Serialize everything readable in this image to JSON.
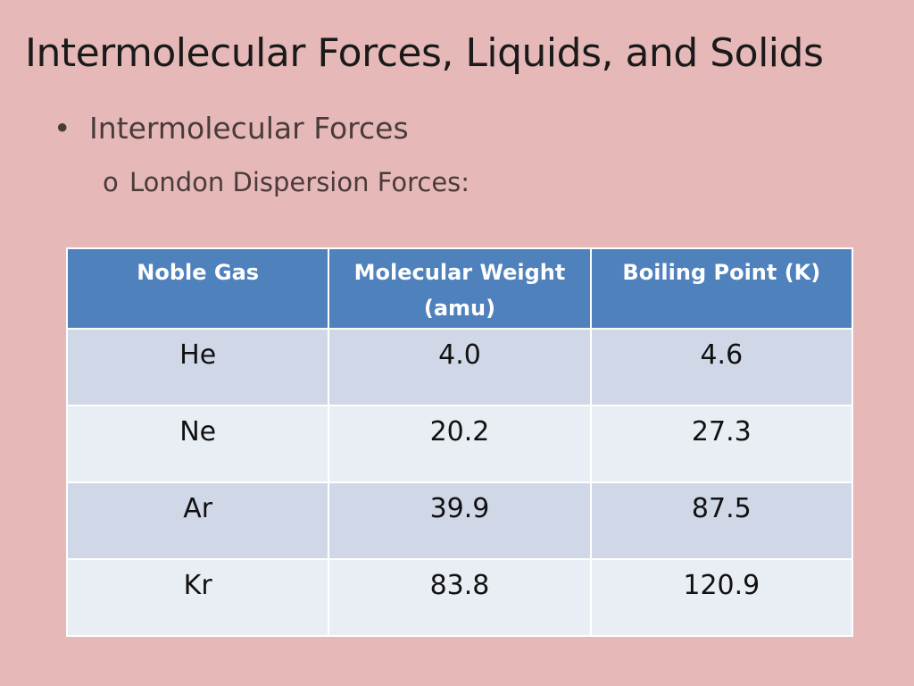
{
  "slide": {
    "title": "Intermolecular Forces, Liquids, and Solids",
    "bullet_1": "Intermolecular Forces",
    "bullet_1_marker": "•",
    "bullet_2": "London Dispersion Forces:",
    "bullet_2_marker": "o"
  },
  "table": {
    "headers": [
      "Noble Gas",
      "Molecular Weight (amu)",
      "Boiling Point (K)"
    ],
    "rows": [
      [
        "He",
        "4.0",
        "4.6"
      ],
      [
        "Ne",
        "20.2",
        "27.3"
      ],
      [
        "Ar",
        "39.9",
        "87.5"
      ],
      [
        "Kr",
        "83.8",
        "120.9"
      ]
    ]
  },
  "colors": {
    "background": "#e6b9b8",
    "header": "#4f81bd",
    "row_odd": "#d0d8e8",
    "row_even": "#e9edf4"
  }
}
